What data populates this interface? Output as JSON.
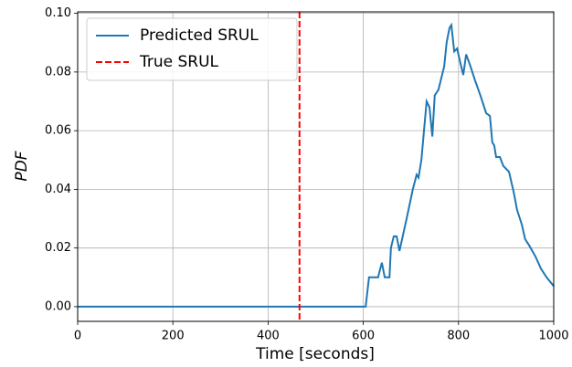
{
  "chart_data": {
    "type": "line",
    "xlabel": "Time [seconds]",
    "ylabel": "PDF",
    "xlim": [
      0,
      1000
    ],
    "ylim": [
      -0.005,
      0.1005
    ],
    "xticks": [
      0,
      200,
      400,
      600,
      800,
      1000
    ],
    "yticks": [
      {
        "value": 0,
        "label": "0.00"
      },
      {
        "value": 0.02,
        "label": "0.02"
      },
      {
        "value": 0.04,
        "label": "0.04"
      },
      {
        "value": 0.06,
        "label": "0.06"
      },
      {
        "value": 0.08,
        "label": "0.08"
      },
      {
        "value": 0.1,
        "label": "0.10"
      }
    ],
    "grid": true,
    "legend": "upper left",
    "series": [
      {
        "name": "Predicted SRUL",
        "color": "#1f77b4",
        "x": [
          0,
          605,
          612,
          631,
          639,
          645,
          655,
          658,
          664,
          670,
          676,
          691,
          704,
          712,
          716,
          722,
          733,
          739,
          745,
          750,
          758,
          770,
          775,
          781,
          785,
          791,
          797,
          804,
          810,
          816,
          825,
          835,
          846,
          858,
          866,
          871,
          875,
          879,
          887,
          894,
          906,
          916,
          923,
          933,
          940,
          948,
          962,
          973,
          985,
          1000
        ],
        "values": [
          0,
          0,
          0.01,
          0.01,
          0.015,
          0.01,
          0.01,
          0.02,
          0.024,
          0.024,
          0.019,
          0.03,
          0.04,
          0.045,
          0.044,
          0.05,
          0.07,
          0.068,
          0.058,
          0.072,
          0.074,
          0.082,
          0.09,
          0.095,
          0.096,
          0.087,
          0.088,
          0.083,
          0.079,
          0.086,
          0.082,
          0.077,
          0.072,
          0.066,
          0.065,
          0.056,
          0.055,
          0.051,
          0.051,
          0.048,
          0.046,
          0.039,
          0.033,
          0.028,
          0.023,
          0.021,
          0.017,
          0.013,
          0.01,
          0.007
        ]
      },
      {
        "name": "True SRUL",
        "color": "#ff0000",
        "x": 466
      }
    ]
  }
}
